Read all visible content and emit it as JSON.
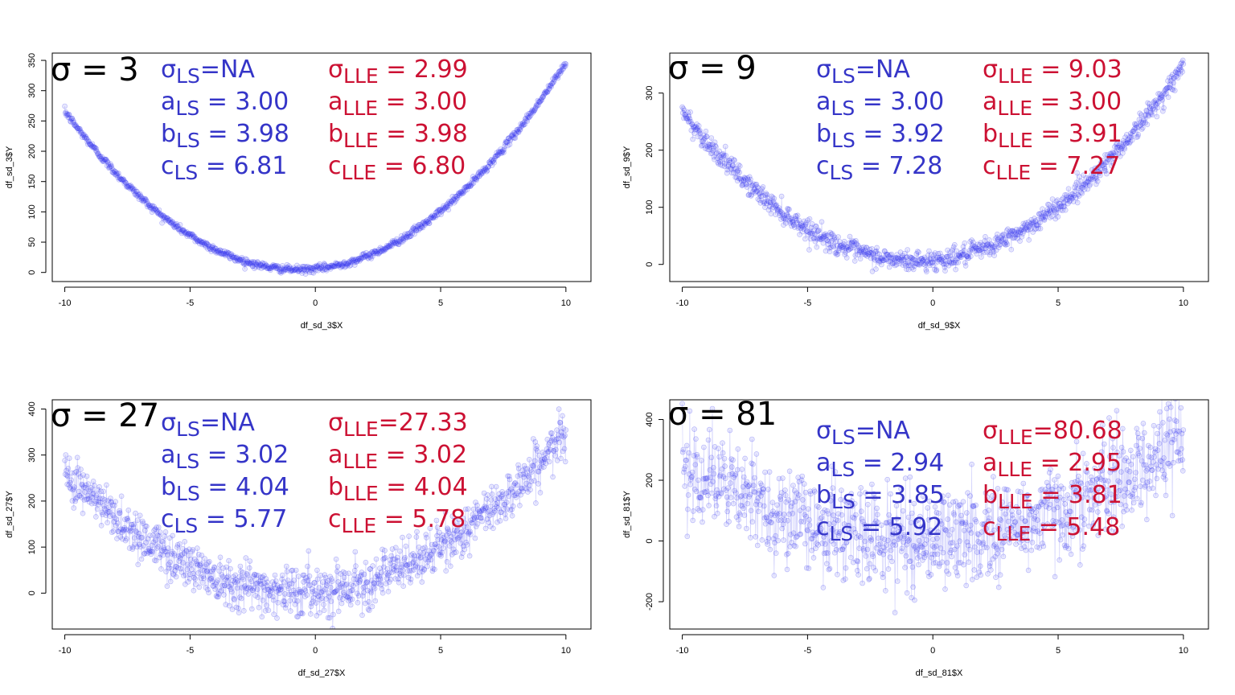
{
  "colors": {
    "points": "#3a3af2",
    "ls_text": "#3535c8",
    "lle_text": "#cc1133",
    "frame": "#000000"
  },
  "chart_data": [
    {
      "type": "scatter",
      "title": "σ = 3",
      "xlabel": "df_sd_3$X",
      "ylabel": "df_sd_3$Y",
      "xlim": [
        -10.5,
        11
      ],
      "ylim": [
        -15,
        362
      ],
      "xticks": [
        -10,
        -5,
        0,
        5,
        10
      ],
      "yticks": [
        0,
        50,
        100,
        150,
        200,
        250,
        300,
        350
      ],
      "model": {
        "a": 3,
        "b": 4,
        "c": 6,
        "noise_sd": 3
      },
      "n_points": 1000,
      "ls": [
        {
          "symbol": "σ",
          "sub": "LS",
          "text": "=NA"
        },
        {
          "symbol": "a",
          "sub": "LS",
          "text": " = 3.00"
        },
        {
          "symbol": "b",
          "sub": "LS",
          "text": " = 3.98"
        },
        {
          "symbol": "c",
          "sub": "LS",
          "text": " = 6.81"
        }
      ],
      "lle": [
        {
          "symbol": "σ",
          "sub": "LLE",
          "text": " = 2.99"
        },
        {
          "symbol": "a",
          "sub": "LLE",
          "text": " = 3.00"
        },
        {
          "symbol": "b",
          "sub": "LLE",
          "text": " = 3.98"
        },
        {
          "symbol": "c",
          "sub": "LLE",
          "text": " = 6.80"
        }
      ]
    },
    {
      "type": "scatter",
      "title": "σ = 9",
      "xlabel": "df_sd_9$X",
      "ylabel": "df_sd_9$Y",
      "xlim": [
        -10.5,
        11
      ],
      "ylim": [
        -30,
        370
      ],
      "xticks": [
        -10,
        -5,
        0,
        5,
        10
      ],
      "yticks": [
        0,
        100,
        200,
        300
      ],
      "model": {
        "a": 3,
        "b": 4,
        "c": 7,
        "noise_sd": 9
      },
      "n_points": 1000,
      "ls": [
        {
          "symbol": "σ",
          "sub": "LS",
          "text": "=NA"
        },
        {
          "symbol": "a",
          "sub": "LS",
          "text": " = 3.00"
        },
        {
          "symbol": "b",
          "sub": "LS",
          "text": " = 3.92"
        },
        {
          "symbol": "c",
          "sub": "LS",
          "text": " = 7.28"
        }
      ],
      "lle": [
        {
          "symbol": "σ",
          "sub": "LLE",
          "text": " = 9.03"
        },
        {
          "symbol": "a",
          "sub": "LLE",
          "text": " = 3.00"
        },
        {
          "symbol": "b",
          "sub": "LLE",
          "text": " = 3.91"
        },
        {
          "symbol": "c",
          "sub": "LLE",
          "text": " = 7.27"
        }
      ]
    },
    {
      "type": "scatter",
      "title": "σ = 27",
      "xlabel": "df_sd_27$X",
      "ylabel": "df_sd_27$Y",
      "xlim": [
        -10.5,
        11
      ],
      "ylim": [
        -78,
        420
      ],
      "xticks": [
        -10,
        -5,
        0,
        5,
        10
      ],
      "yticks": [
        0,
        100,
        200,
        300,
        400
      ],
      "model": {
        "a": 3,
        "b": 4,
        "c": 6,
        "noise_sd": 27
      },
      "n_points": 1000,
      "ls": [
        {
          "symbol": "σ",
          "sub": "LS",
          "text": "=NA"
        },
        {
          "symbol": "a",
          "sub": "LS",
          "text": " = 3.02"
        },
        {
          "symbol": "b",
          "sub": "LS",
          "text": " = 4.04"
        },
        {
          "symbol": "c",
          "sub": "LS",
          "text": " = 5.77"
        }
      ],
      "lle": [
        {
          "symbol": "σ",
          "sub": "LLE",
          "text": "=27.33"
        },
        {
          "symbol": "a",
          "sub": "LLE",
          "text": " = 3.02"
        },
        {
          "symbol": "b",
          "sub": "LLE",
          "text": " = 4.04"
        },
        {
          "symbol": "c",
          "sub": "LLE",
          "text": " = 5.78"
        }
      ]
    },
    {
      "type": "scatter",
      "title": "σ = 81",
      "xlabel": "df_sd_81$X",
      "ylabel": "df_sd_81$Y",
      "xlim": [
        -10.5,
        11
      ],
      "ylim": [
        -290,
        465
      ],
      "xticks": [
        -10,
        -5,
        0,
        5,
        10
      ],
      "yticks": [
        -200,
        0,
        200,
        400
      ],
      "model": {
        "a": 3,
        "b": 4,
        "c": 6,
        "noise_sd": 81
      },
      "n_points": 1000,
      "ls": [
        {
          "symbol": "σ",
          "sub": "LS",
          "text": "=NA"
        },
        {
          "symbol": "a",
          "sub": "LS",
          "text": " = 2.94"
        },
        {
          "symbol": "b",
          "sub": "LS",
          "text": " = 3.85"
        },
        {
          "symbol": "c",
          "sub": "LS",
          "text": " = 5.92"
        }
      ],
      "lle": [
        {
          "symbol": "σ",
          "sub": "LLE",
          "text": "=80.68"
        },
        {
          "symbol": "a",
          "sub": "LLE",
          "text": " = 2.95"
        },
        {
          "symbol": "b",
          "sub": "LLE",
          "text": " = 3.81"
        },
        {
          "symbol": "c",
          "sub": "LLE",
          "text": " = 5.48"
        }
      ]
    }
  ]
}
